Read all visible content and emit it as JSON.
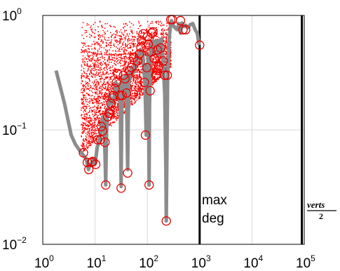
{
  "chart_data": {
    "type": "scatter",
    "title": "",
    "xlabel": "",
    "ylabel": "",
    "xscale": "log",
    "yscale": "log",
    "xlim": [
      1,
      100000
    ],
    "ylim": [
      0.01,
      1
    ],
    "grid": true,
    "legend": "none",
    "x_ticks": [
      {
        "base": "10",
        "exp": "0"
      },
      {
        "base": "10",
        "exp": "1"
      },
      {
        "base": "10",
        "exp": "2"
      },
      {
        "base": "10",
        "exp": "3"
      },
      {
        "base": "10",
        "exp": "4"
      },
      {
        "base": "10",
        "exp": "5"
      }
    ],
    "y_ticks": [
      {
        "base": "10",
        "exp": "−2"
      },
      {
        "base": "10",
        "exp": "−1"
      },
      {
        "base": "10",
        "exp": "0"
      }
    ],
    "vertical_lines": [
      {
        "x": 1000,
        "label_line1": "max",
        "label_line2": "deg"
      },
      {
        "x": 90000,
        "label_num": "verts",
        "label_den": "2"
      }
    ],
    "series": [
      {
        "kind": "line",
        "color": "#8c8c8c",
        "points": [
          [
            1.8,
            0.33
          ],
          [
            2.6,
            0.17
          ],
          [
            3.5,
            0.09
          ],
          [
            4.2,
            0.075
          ],
          [
            5.2,
            0.065
          ],
          [
            6.0,
            0.06
          ],
          [
            6.8,
            0.055
          ],
          [
            7.5,
            0.045
          ],
          [
            8.0,
            0.05
          ],
          [
            8.5,
            0.05
          ],
          [
            9.0,
            0.055
          ],
          [
            10.0,
            0.05
          ],
          [
            11.0,
            0.07
          ],
          [
            12.0,
            0.08
          ],
          [
            13.0,
            0.1
          ],
          [
            14.0,
            0.13
          ],
          [
            14.8,
            0.12
          ],
          [
            15.5,
            0.06
          ],
          [
            16.0,
            0.033
          ],
          [
            16.5,
            0.08
          ],
          [
            17.0,
            0.14
          ],
          [
            18.0,
            0.15
          ],
          [
            19.0,
            0.2
          ],
          [
            21.0,
            0.17
          ],
          [
            23.0,
            0.19
          ],
          [
            25.0,
            0.26
          ],
          [
            27.0,
            0.2
          ],
          [
            29.0,
            0.25
          ],
          [
            30.5,
            0.15
          ],
          [
            31.5,
            0.032
          ],
          [
            32.5,
            0.15
          ],
          [
            34.0,
            0.28
          ],
          [
            36.0,
            0.25
          ],
          [
            38.0,
            0.3
          ],
          [
            40.0,
            0.2
          ],
          [
            42.0,
            0.045
          ],
          [
            44.0,
            0.25
          ],
          [
            47.0,
            0.33
          ],
          [
            52.0,
            0.35
          ],
          [
            56.0,
            0.32
          ],
          [
            62.0,
            0.4
          ],
          [
            68.0,
            0.45
          ],
          [
            75.0,
            0.5
          ],
          [
            82.0,
            0.45
          ],
          [
            90.0,
            0.25
          ],
          [
            95.0,
            0.09
          ],
          [
            100.0,
            0.25
          ],
          [
            103.0,
            0.45
          ],
          [
            106.0,
            0.16
          ],
          [
            108.0,
            0.033
          ],
          [
            110.0,
            0.16
          ],
          [
            115.0,
            0.45
          ],
          [
            122.0,
            0.55
          ],
          [
            130.0,
            0.6
          ],
          [
            140.0,
            0.55
          ],
          [
            150.0,
            0.6
          ],
          [
            160.0,
            0.45
          ],
          [
            170.0,
            0.6
          ],
          [
            185.0,
            0.62
          ],
          [
            200.0,
            0.4
          ],
          [
            215.0,
            0.2
          ],
          [
            225.0,
            0.05
          ],
          [
            230.0,
            0.016
          ],
          [
            236.0,
            0.05
          ],
          [
            245.0,
            0.3
          ],
          [
            260.0,
            0.62
          ],
          [
            275.0,
            0.78
          ],
          [
            290.0,
            0.9
          ],
          [
            310.0,
            0.82
          ],
          [
            340.0,
            0.78
          ],
          [
            370.0,
            0.75
          ],
          [
            400.0,
            0.85
          ],
          [
            430.0,
            0.7
          ],
          [
            460.0,
            0.86
          ],
          [
            500.0,
            0.8
          ],
          [
            540.0,
            0.82
          ],
          [
            600.0,
            0.78
          ],
          [
            660.0,
            0.83
          ],
          [
            740.0,
            0.85
          ],
          [
            820.0,
            0.75
          ],
          [
            900.0,
            0.7
          ],
          [
            980.0,
            0.55
          ]
        ]
      },
      {
        "kind": "circles",
        "color": "#e60000",
        "points": [
          [
            6.0,
            0.063
          ],
          [
            7.1,
            0.052
          ],
          [
            7.6,
            0.045
          ],
          [
            8.6,
            0.052
          ],
          [
            9.0,
            0.053
          ],
          [
            10.3,
            0.05
          ],
          [
            11.2,
            0.082
          ],
          [
            12.6,
            0.082
          ],
          [
            13.2,
            0.107
          ],
          [
            14.0,
            0.098
          ],
          [
            15.5,
            0.078
          ],
          [
            16.0,
            0.033
          ],
          [
            17.5,
            0.13
          ],
          [
            18.3,
            0.14
          ],
          [
            19.3,
            0.14
          ],
          [
            20.0,
            0.17
          ],
          [
            21.5,
            0.19
          ],
          [
            22.5,
            0.2
          ],
          [
            24.0,
            0.23
          ],
          [
            25.5,
            0.26
          ],
          [
            27.0,
            0.31
          ],
          [
            30.0,
            0.2
          ],
          [
            31.5,
            0.031
          ],
          [
            33.0,
            0.2
          ],
          [
            35.0,
            0.3
          ],
          [
            37.5,
            0.28
          ],
          [
            40.0,
            0.21
          ],
          [
            42.0,
            0.042
          ],
          [
            45.0,
            0.33
          ],
          [
            50.0,
            0.35
          ],
          [
            55.0,
            0.43
          ],
          [
            60.0,
            0.31
          ],
          [
            65.0,
            0.4
          ],
          [
            70.0,
            0.46
          ],
          [
            75.0,
            0.53
          ],
          [
            78.0,
            0.6
          ],
          [
            83.0,
            0.69
          ],
          [
            88.0,
            0.26
          ],
          [
            92.0,
            0.09
          ],
          [
            98.0,
            0.35
          ],
          [
            100.0,
            0.65
          ],
          [
            104.0,
            0.56
          ],
          [
            108.0,
            0.033
          ],
          [
            113.0,
            0.22
          ],
          [
            117.0,
            0.48
          ],
          [
            122.0,
            0.7
          ],
          [
            128.0,
            0.72
          ],
          [
            135.0,
            0.42
          ],
          [
            145.0,
            0.3
          ],
          [
            155.0,
            0.5
          ],
          [
            165.0,
            0.36
          ],
          [
            180.0,
            0.52
          ],
          [
            200.0,
            0.4
          ],
          [
            215.0,
            0.3
          ],
          [
            230.0,
            0.016
          ],
          [
            240.0,
            0.3
          ],
          [
            280.0,
            0.92
          ],
          [
            300.0,
            0.92
          ],
          [
            430.0,
            0.9
          ],
          [
            480.0,
            0.75
          ],
          [
            540.0,
            0.75
          ],
          [
            1000.0,
            0.55
          ]
        ]
      },
      {
        "kind": "dots",
        "color": "#ff0000",
        "x_range": [
          5.5,
          280
        ],
        "y_top": 0.9,
        "y_floor": 0.06,
        "columns": 120
      }
    ]
  }
}
